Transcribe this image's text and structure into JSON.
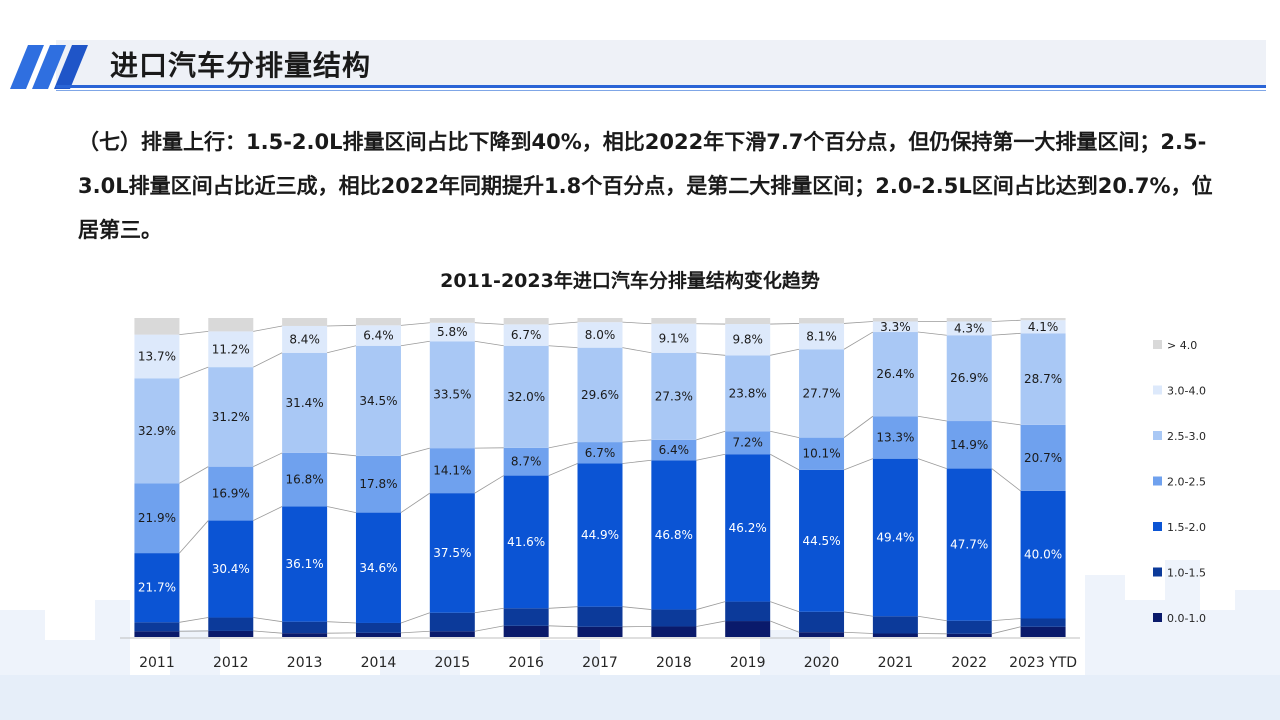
{
  "page": {
    "title": "进口汽车分排量结构",
    "paragraph": "（七）排量上行：1.5-2.0L排量区间占比下降到40%，相比2022年下滑7.7个百分点，但仍保持第一大排量区间；2.5-3.0L排量区间占比近三成，相比2022年同期提升1.8个百分点，是第二大排量区间；2.0-2.5L区间占比达到20.7%，位居第三。"
  },
  "colors": {
    "accent": "#2a64d6",
    "s0": "#0a1a6b",
    "s1": "#0c3a9a",
    "s2": "#0b54d4",
    "s3": "#6fa1ee",
    "s4": "#a9c8f5",
    "s5": "#dde9fb",
    "s6": "#d9d9d9"
  },
  "chart_data": {
    "type": "bar",
    "stacked": "100%",
    "title": "2011-2023年进口汽车分排量结构变化趋势",
    "categories": [
      "2011",
      "2012",
      "2013",
      "2014",
      "2015",
      "2016",
      "2017",
      "2018",
      "2019",
      "2020",
      "2021",
      "2022",
      "2023 YTD"
    ],
    "series": [
      {
        "name": "0.0-1.0",
        "values": [
          1.8,
          1.9,
          1.2,
          1.3,
          1.8,
          3.5,
          3.2,
          3.3,
          5.0,
          1.5,
          1.1,
          1.0,
          3.2
        ]
      },
      {
        "name": "1.0-1.5",
        "values": [
          2.8,
          4.2,
          3.6,
          3.1,
          5.8,
          5.5,
          6.3,
          5.3,
          6.1,
          6.4,
          5.4,
          4.1,
          2.6
        ]
      },
      {
        "name": "1.5-2.0",
        "values": [
          21.7,
          30.4,
          36.1,
          34.6,
          37.5,
          41.6,
          44.9,
          46.8,
          46.2,
          44.5,
          49.4,
          47.7,
          40.0
        ]
      },
      {
        "name": "2.0-2.5",
        "values": [
          21.9,
          16.9,
          16.8,
          17.8,
          14.1,
          8.7,
          6.7,
          6.4,
          7.2,
          10.1,
          13.3,
          14.9,
          20.7
        ]
      },
      {
        "name": "2.5-3.0",
        "values": [
          32.9,
          31.2,
          31.4,
          34.5,
          33.5,
          32.0,
          29.6,
          27.3,
          23.8,
          27.7,
          26.4,
          26.9,
          28.7
        ]
      },
      {
        "name": "3.0-4.0",
        "values": [
          13.7,
          11.2,
          8.4,
          6.4,
          5.8,
          6.7,
          8.0,
          9.1,
          9.8,
          8.1,
          3.3,
          4.3,
          4.1
        ]
      },
      {
        "name": "> 4.0",
        "values": [
          5.2,
          4.2,
          2.5,
          2.3,
          1.5,
          2.0,
          1.3,
          1.8,
          1.9,
          1.7,
          1.1,
          1.1,
          0.7
        ]
      }
    ],
    "data_labels_series": [
      "1.5-2.0",
      "2.0-2.5",
      "2.5-3.0",
      "3.0-4.0"
    ],
    "legend_order": [
      "> 4.0",
      "3.0-4.0",
      "2.5-3.0",
      "2.0-2.5",
      "1.5-2.0",
      "1.0-1.5",
      "0.0-1.0"
    ],
    "legend_position": "right",
    "grid": false
  }
}
